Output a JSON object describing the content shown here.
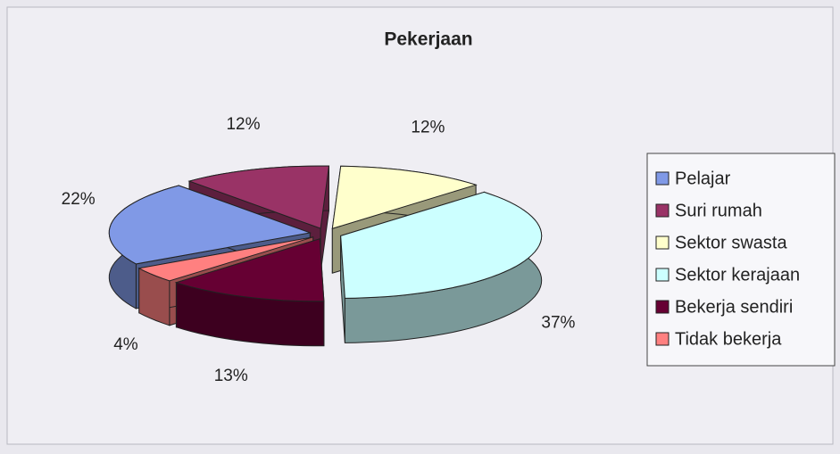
{
  "chart_data": {
    "type": "pie3d",
    "title": "Pekerjaan",
    "categories": [
      "Pelajar",
      "Suri rumah",
      "Sektor swasta",
      "Sektor kerajaan",
      "Bekerja sendiri",
      "Tidak bekerja"
    ],
    "values": [
      22,
      12,
      12,
      37,
      13,
      4
    ],
    "value_labels": [
      "22%",
      "12%",
      "12%",
      "37%",
      "13%",
      "4%"
    ],
    "colors": [
      "#8099e6",
      "#993366",
      "#ffffcc",
      "#ccffff",
      "#660033",
      "#ff8080"
    ],
    "legend": "right"
  }
}
